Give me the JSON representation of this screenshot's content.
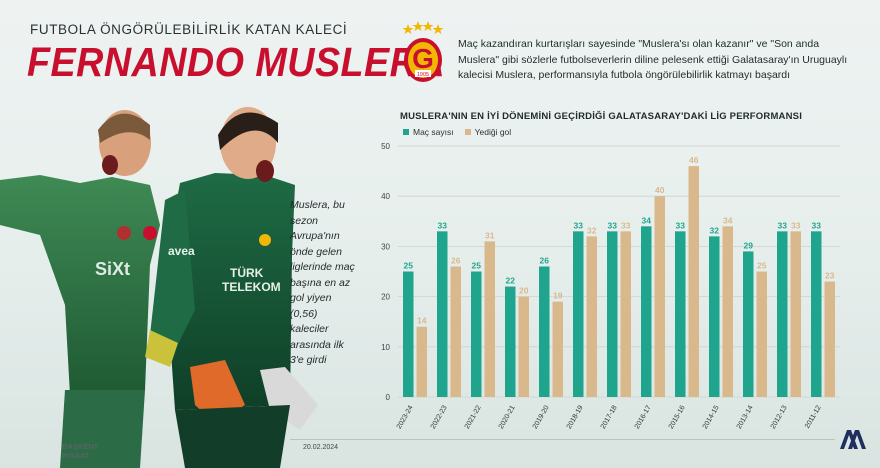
{
  "header": {
    "supertitle": "FUTBOLA ÖNGÖRÜLEBİLİRLİK KATAN KALECİ",
    "title": "FERNANDO MUSLERA",
    "intro": "Maç kazandıran kurtarışları sayesinde \"Muslera'sı olan kazanır\" ve \"Son anda Muslera\" gibi sözlerle futbolseverlerin diline pelesenk ettiği Galatasaray'ın Uruguaylı kalecisi Muslera, performansıyla futbola öngörülebilirlik katmayı başardı"
  },
  "side_note": "Muslera, bu sezon Avrupa'nın önde gelen liglerinde maç başına en az gol yiyen (0,56) kaleciler arasında ilk 3'e girdi",
  "logo": {
    "text": "1905",
    "icon": "galatasaray-crest-icon"
  },
  "colors": {
    "matches": "#1fa58e",
    "goals": "#d9b98c",
    "title_red": "#c8102e",
    "grid": "#c9d3d1"
  },
  "footer": {
    "date": "20.02.2024",
    "sponsor": "BAŞKENT\nİNŞAAT",
    "agency_icon": "aa-logo-icon"
  },
  "chart_data": {
    "type": "bar",
    "title": "MUSLERA'NIN EN İYİ DÖNEMİNİ GEÇİRDİĞİ GALATASARAY'DAKİ LİG PERFORMANSI",
    "categories": [
      "2023-24",
      "2022-23",
      "2021-22",
      "2020-21",
      "2019-20",
      "2018-19",
      "2017-18",
      "2016-17",
      "2015-16",
      "2014-15",
      "2013-14",
      "2012-13",
      "2011-12"
    ],
    "series": [
      {
        "name": "Maç sayısı",
        "values": [
          25,
          33,
          25,
          22,
          26,
          33,
          33,
          34,
          33,
          32,
          29,
          33,
          33
        ]
      },
      {
        "name": "Yediği gol",
        "values": [
          14,
          26,
          31,
          20,
          19,
          32,
          33,
          40,
          46,
          34,
          25,
          33,
          23
        ]
      }
    ],
    "yticks": [
      0,
      10,
      20,
      30,
      40,
      50
    ],
    "ylim": [
      0,
      50
    ],
    "grid": true,
    "legend": "top-left"
  }
}
